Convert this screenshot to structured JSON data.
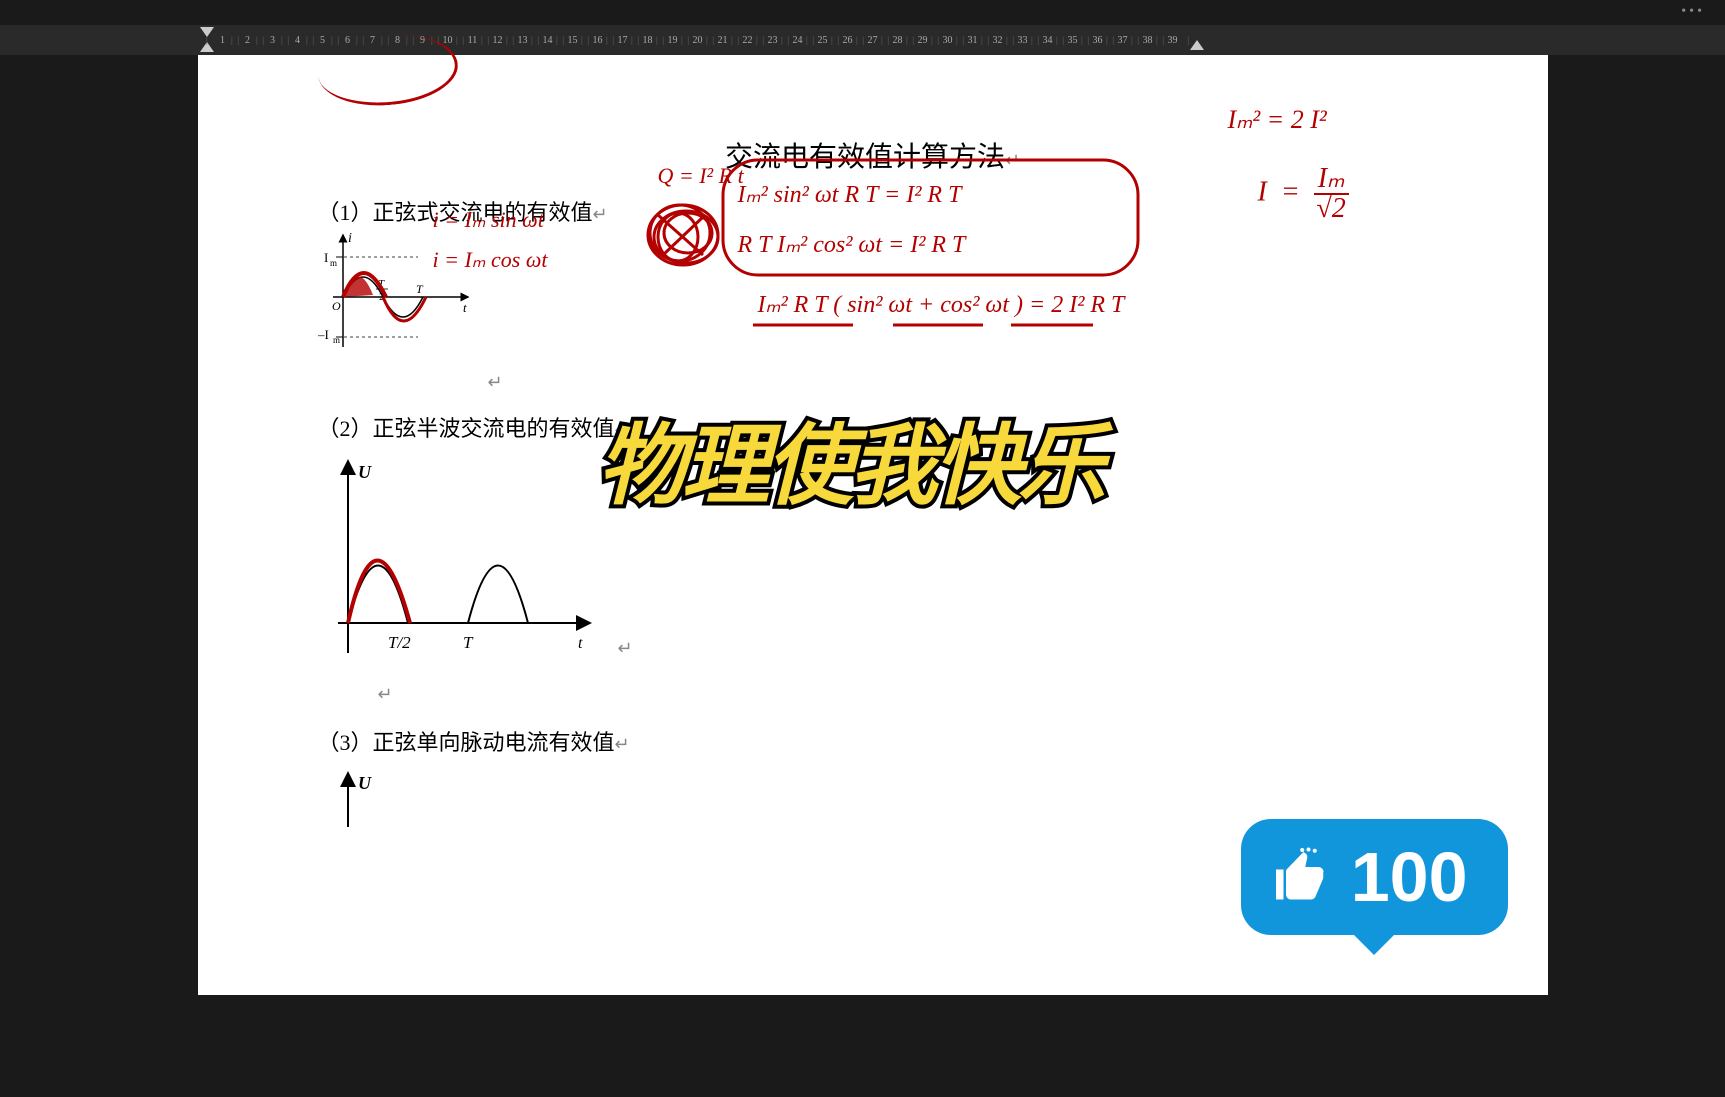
{
  "ruler": {
    "start": 1,
    "end": 39
  },
  "doc": {
    "title": "交流电有效值计算方法",
    "line1": "（1）正弦式交流电的有效值",
    "line2": "（2）正弦半波交流电的有效值",
    "line3": "（3）正弦单向脉动电流有效值",
    "para_mark": "↵"
  },
  "graph1": {
    "y_label_top": "i",
    "y_tick_top": "I",
    "y_sub_top": "m",
    "y_tick_bot": "–I",
    "y_sub_bot": "m",
    "x_label": "t",
    "origin": "O",
    "tick_T2_top": "T",
    "tick_T2_bot": "2",
    "tick_T": "T",
    "axis_color": "#000000",
    "curve_color": "#000000"
  },
  "graph2": {
    "y_label": "U",
    "x_label": "t",
    "tick_T2": "T/2",
    "tick_T": "T",
    "axis_color": "#000000"
  },
  "graph3": {
    "y_label": "U"
  },
  "annotations": {
    "color": "#b30000",
    "eq1": "i = Iₘ sin ωt",
    "eq2": "i = Iₘ cos ωt",
    "eq_Q": "Q = I² R t",
    "box1_line1": "Iₘ² sin² ωt R T  =  I² R T",
    "box1_line2": "R T Iₘ² cos² ωt   =  I² R T",
    "sum_line": "Iₘ² R T ( sin² ωt + cos² ωt )  =  2 I² R T",
    "right1": "Iₘ²  =  2 I²",
    "right2": "I  =  Iₘ / √2"
  },
  "overlay": {
    "text": "物理使我快乐",
    "text_color": "#f8d93c",
    "stroke_color": "#000000"
  },
  "like": {
    "count": "100",
    "bg_color": "#1296db",
    "fg_color": "#ffffff"
  }
}
